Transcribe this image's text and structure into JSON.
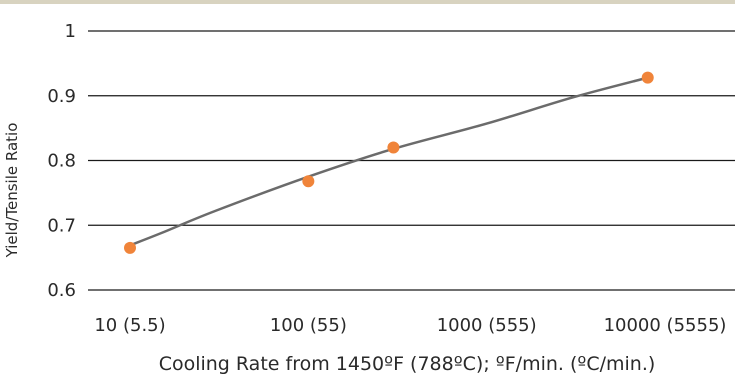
{
  "chart_data": {
    "type": "scatter",
    "title": "",
    "xlabel": "Cooling Rate from 1450ºF (788ºC); ºF/min. (ºC/min.)",
    "ylabel": "Yield/Tensile Ratio",
    "x_scale": "log",
    "x_ticks": [
      10,
      100,
      1000,
      10000
    ],
    "x_tick_labels": [
      "10 (5.5)",
      "100 (55)",
      "1000 (555)",
      "10000 (5555)"
    ],
    "xlim": [
      10,
      10000
    ],
    "y_ticks": [
      0.6,
      0.7,
      0.8,
      0.9,
      1
    ],
    "y_tick_labels": [
      "0.6",
      "0.7",
      "0.8",
      "0.9",
      "1"
    ],
    "ylim": [
      0.6,
      1
    ],
    "grid": "horizontal",
    "series": [
      {
        "type": "scatter",
        "x": [
          10,
          100,
          300,
          8000
        ],
        "y": [
          0.665,
          0.768,
          0.82,
          0.928
        ],
        "color": "#f0843a"
      },
      {
        "type": "trend-line",
        "x": [
          10,
          15,
          30,
          100,
          300,
          1000,
          3000,
          8000
        ],
        "y": [
          0.669,
          0.688,
          0.722,
          0.775,
          0.818,
          0.857,
          0.897,
          0.928
        ],
        "color": "#6b6b6b"
      }
    ],
    "colors": {
      "top_rule": "#d8d3c0",
      "grid": "#1a1a1a",
      "text": "#2a2a2a"
    }
  }
}
